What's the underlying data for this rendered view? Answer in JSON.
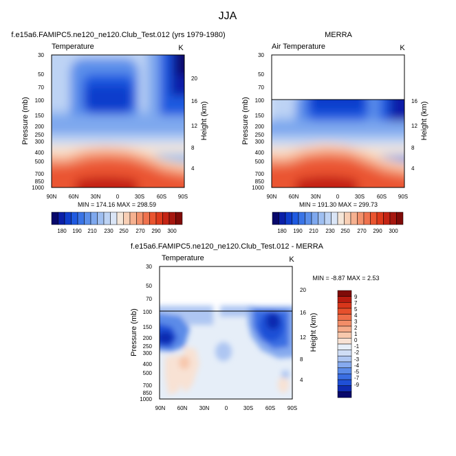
{
  "page_title": "JJA",
  "colors": {
    "temp_scale": [
      "#08086b",
      "#0a1fa8",
      "#0f3dcc",
      "#1f5ae0",
      "#3a74e6",
      "#5b8fea",
      "#7ea8ee",
      "#9fbff1",
      "#bdd3f4",
      "#dae5f6",
      "#f5e6d8",
      "#f8cfb5",
      "#f6b190",
      "#f3916c",
      "#ef724e",
      "#ea5530",
      "#dd3a1c",
      "#c42414",
      "#a6170f",
      "#7f0b08"
    ],
    "diff_scale": [
      "#08086b",
      "#0f2bb0",
      "#1f4fd6",
      "#3a6ee2",
      "#5b8be8",
      "#86aaee",
      "#aec6f2",
      "#cfddf5",
      "#e6eef8",
      "#f8e2d4",
      "#f7c8ad",
      "#f5ab8a",
      "#f28d68",
      "#ee6e49",
      "#e6502c",
      "#d8361b",
      "#b81c10",
      "#7f0b08"
    ]
  },
  "chart_data": [
    {
      "type": "heatmap",
      "title": "f.e15a6.FAMIPC5.ne120_ne120.Club_Test.012 (yrs 1979-1980)",
      "left_label": "Temperature",
      "right_label": "K",
      "ylabel": "Pressure (mb)",
      "y2label": "Height (km)",
      "x_ticks": [
        "90N",
        "60N",
        "30N",
        "0",
        "30S",
        "60S",
        "90S"
      ],
      "y_ticks": [
        "30",
        "50",
        "70",
        "100",
        "150",
        "200",
        "250",
        "300",
        "400",
        "500",
        "700",
        "850",
        "1000"
      ],
      "y2_ticks": [
        "20",
        "16",
        "12",
        "8",
        "4"
      ],
      "stats": "MIN = 174.16   MAX = 298.59",
      "colorbar_labels": [
        "180",
        "190",
        "210",
        "230",
        "250",
        "270",
        "290",
        "300"
      ],
      "ylim": [
        1000,
        30
      ],
      "data_top_mb": 30
    },
    {
      "type": "heatmap",
      "title": "MERRA",
      "left_label": "Air Temperature",
      "right_label": "K",
      "ylabel": "Pressure (mb)",
      "y2label": "Height (km)",
      "x_ticks": [
        "90N",
        "60N",
        "30N",
        "0",
        "30S",
        "60S",
        "90S"
      ],
      "y_ticks": [
        "30",
        "50",
        "70",
        "100",
        "150",
        "200",
        "250",
        "300",
        "400",
        "500",
        "700",
        "850",
        "1000"
      ],
      "y2_ticks": [
        "20",
        "16",
        "12",
        "8",
        "4"
      ],
      "stats": "MIN = 191.30   MAX = 299.73",
      "colorbar_labels": [
        "180",
        "190",
        "210",
        "230",
        "250",
        "270",
        "290",
        "300"
      ],
      "ylim": [
        1000,
        30
      ],
      "data_top_mb": 100
    },
    {
      "type": "heatmap",
      "title": "f.e15a6.FAMIPC5.ne120_ne120.Club_Test.012 - MERRA",
      "left_label": "Temperature",
      "right_label": "K",
      "ylabel": "Pressure (mb)",
      "y2label": "Height (km)",
      "x_ticks": [
        "90N",
        "60N",
        "30N",
        "0",
        "30S",
        "60S",
        "90S"
      ],
      "y_ticks": [
        "30",
        "50",
        "70",
        "100",
        "150",
        "200",
        "250",
        "300",
        "400",
        "500",
        "700",
        "850",
        "1000"
      ],
      "y2_ticks": [
        "20",
        "16",
        "12",
        "8",
        "4"
      ],
      "stats": "MIN =  -8.87   MAX =   2.53",
      "colorbar_labels": [
        "9",
        "7",
        "5",
        "4",
        "3",
        "2",
        "1",
        "0",
        "-1",
        "-2",
        "-3",
        "-4",
        "-5",
        "-7",
        "-9"
      ],
      "ylim": [
        1000,
        30
      ],
      "data_top_mb": 100
    }
  ]
}
